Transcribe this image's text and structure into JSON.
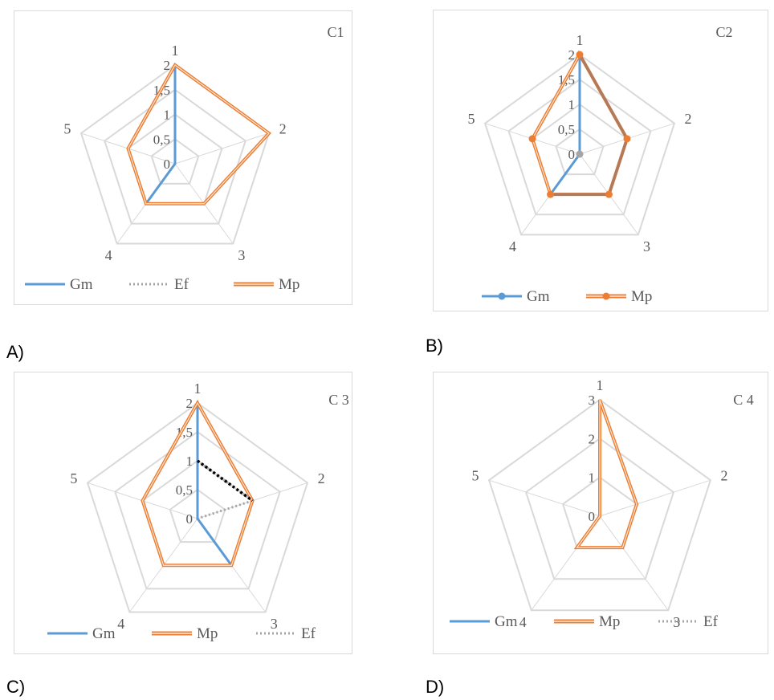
{
  "panel_labels": [
    "A)",
    "B)",
    "C)",
    "D)"
  ],
  "colors": {
    "Gm": "#5b9bd5",
    "Mp": "#ed7d31",
    "Mp_inner": "#fbe5d6",
    "Ef": "#a5a5a5",
    "overlap": "#b07a5b",
    "grid": "#d9d9d9",
    "Ef_dark": "#000000"
  },
  "chart_data": [
    {
      "type": "radar",
      "title": "C1",
      "categories": [
        "1",
        "2",
        "3",
        "4",
        "5"
      ],
      "rlim": [
        0,
        2
      ],
      "ticks": [
        "0",
        "0,5",
        "1",
        "1,5",
        "2"
      ],
      "series": [
        {
          "name": "Gm",
          "values": [
            2,
            0,
            0,
            1,
            0
          ]
        },
        {
          "name": "Ef",
          "values": [
            0,
            0,
            0,
            0,
            0
          ]
        },
        {
          "name": "Mp",
          "values": [
            2,
            2,
            1,
            1,
            1
          ]
        }
      ],
      "legend": [
        "Gm",
        "Ef",
        "Mp"
      ],
      "legend_position": "bottom"
    },
    {
      "type": "radar",
      "title": "C2",
      "categories": [
        "1",
        "2",
        "3",
        "4",
        "5"
      ],
      "rlim": [
        0,
        2
      ],
      "ticks": [
        "0",
        "0,5",
        "1",
        "1,5",
        "2"
      ],
      "series": [
        {
          "name": "Gm",
          "values": [
            2,
            1,
            1,
            1,
            0
          ]
        },
        {
          "name": "Mp",
          "values": [
            2,
            1,
            1,
            1,
            1
          ]
        }
      ],
      "legend": [
        "Gm",
        "Mp"
      ],
      "legend_position": "bottom",
      "markers": true
    },
    {
      "type": "radar",
      "title": "C 3",
      "categories": [
        "1",
        "2",
        "3",
        "4",
        "5"
      ],
      "rlim": [
        0,
        2
      ],
      "ticks": [
        "0",
        "0,5",
        "1",
        "1,5",
        "2"
      ],
      "series": [
        {
          "name": "Gm",
          "values": [
            2,
            0,
            1,
            0,
            0
          ]
        },
        {
          "name": "Mp",
          "values": [
            2,
            1,
            1,
            1,
            1
          ]
        },
        {
          "name": "Ef",
          "values": [
            1,
            1,
            0,
            0,
            0
          ]
        }
      ],
      "legend": [
        "Gm",
        "Mp",
        "Ef"
      ],
      "legend_position": "bottom"
    },
    {
      "type": "radar",
      "title": "C 4",
      "categories": [
        "1",
        "2",
        "3",
        "4",
        "5"
      ],
      "rlim": [
        0,
        3
      ],
      "ticks": [
        "0",
        "1",
        "2",
        "3"
      ],
      "series": [
        {
          "name": "Gm",
          "values": [
            0,
            0,
            0,
            0,
            0
          ]
        },
        {
          "name": "Mp",
          "values": [
            3,
            1,
            1,
            1,
            0
          ]
        },
        {
          "name": "Ef",
          "values": [
            2,
            0,
            0,
            0,
            0
          ]
        }
      ],
      "legend": [
        "Gm",
        "Mp",
        "Ef"
      ],
      "legend_position": "bottom"
    }
  ]
}
